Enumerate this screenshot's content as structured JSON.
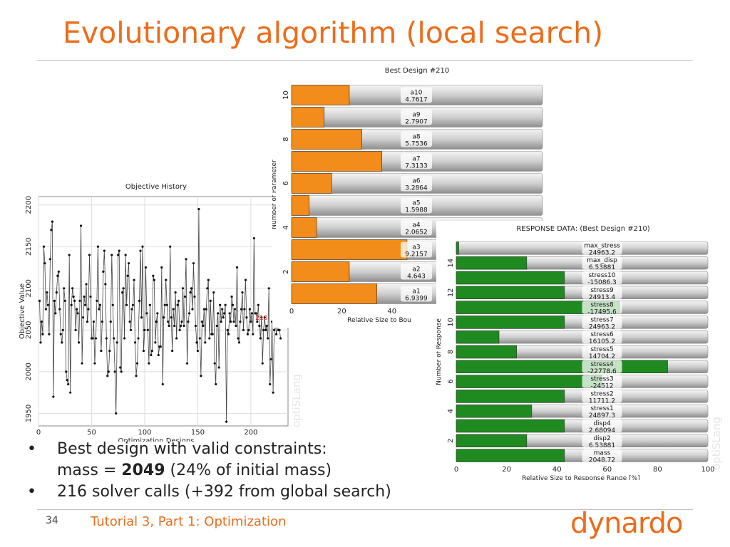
{
  "slide": {
    "title": "Evolutionary algorithm (local search)",
    "bullets": [
      {
        "line1": "Best design with valid constraints:",
        "line2_pre": "mass = ",
        "line2_bold": "2049",
        "line2_post": " (24% of initial mass)"
      },
      {
        "line1": "216 solver calls (+392 from global search)"
      }
    ],
    "page_number": "34",
    "footer": "Tutorial 3, Part 1: Optimization",
    "logo_text": "dynardo",
    "watermark": "optiSLang",
    "colors": {
      "accent": "#ec6c1a",
      "orange_bar": "#f28c1a",
      "green_bar": "#1f8a1f"
    }
  },
  "chart_data": [
    {
      "type": "line",
      "title": "Objective History",
      "xlabel": "Optimization Designs",
      "ylabel": "Objective Value",
      "xlim": [
        0,
        235
      ],
      "ylim": [
        1935,
        2210
      ],
      "xticks": [
        0,
        50,
        100,
        150,
        200
      ],
      "yticks": [
        1950,
        2000,
        2050,
        2100,
        2150,
        2200
      ],
      "highlight": {
        "label": "210",
        "x": 210,
        "y": 2065
      },
      "series": [
        {
          "values": [
            2085,
            2035,
            2060,
            2045,
            2150,
            2130,
            2075,
            2095,
            2080,
            2045,
            2135,
            2170,
            2180,
            1970,
            2085,
            2070,
            2095,
            2115,
            2120,
            2075,
            2045,
            2035,
            2050,
            2100,
            2085,
            2000,
            1990,
            1985,
            2140,
            1975,
            2080,
            2100,
            2090,
            2085,
            2050,
            2075,
            2070,
            2035,
            2085,
            2175,
            2010,
            2065,
            2090,
            2080,
            2105,
            2060,
            2075,
            2140,
            2090,
            2040,
            2040,
            2060,
            2010,
            2040,
            2085,
            2150,
            2075,
            2080,
            2025,
            2060,
            2120,
            2145,
            2105,
            2040,
            1995,
            2000,
            2025,
            2060,
            2140,
            2080,
            2040,
            2000,
            1950,
            2035,
            2140,
            2145,
            2005,
            2000,
            2095,
            2100,
            2040,
            2140,
            2080,
            2115,
            2130,
            2060,
            2050,
            2075,
            2080,
            2110,
            2035,
            1995,
            2010,
            2040,
            2085,
            2145,
            2065,
            2150,
            2025,
            2050,
            2125,
            2070,
            2050,
            2010,
            2080,
            2020,
            2025,
            2115,
            2110,
            2035,
            2060,
            2070,
            2020,
            2030,
            2030,
            2125,
            1985,
            2065,
            2080,
            2110,
            2080,
            2060,
            2055,
            2150,
            2065,
            2025,
            2075,
            2055,
            2095,
            2040,
            2080,
            2085,
            2050,
            2055,
            2060,
            2100,
            2055,
            2090,
            2135,
            2010,
            2060,
            2070,
            2095,
            2100,
            2075,
            2130,
            2090,
            2055,
            2035,
            2025,
            2195,
            2040,
            1995,
            2060,
            2055,
            2075,
            2035,
            2075,
            2100,
            2110,
            2040,
            2085,
            2045,
            2045,
            2095,
            2010,
            1985,
            2055,
            2070,
            2005,
            2080,
            2060,
            2075,
            2065,
            2070,
            2080,
            1940,
            2050,
            2045,
            2070,
            2060,
            2090,
            2080,
            2060,
            2075,
            2055,
            2125,
            2040,
            2035,
            2060,
            2075,
            2095,
            2050,
            2075,
            2110,
            2065,
            2045,
            2050,
            2075,
            2060,
            2070,
            2045,
            2160,
            2070,
            2070,
            2060,
            2080,
            2055,
            2040,
            2065,
            2010,
            2050,
            2065,
            2050,
            2055,
            2040,
            2100,
            1985,
            2015,
            2060,
            1975,
            2050,
            2060,
            2045,
            2055,
            2050,
            2050,
            2040
          ]
        }
      ]
    },
    {
      "type": "bar",
      "orientation": "horizontal",
      "title": "Best Design #210",
      "xlabel": "Relative Size to Bou",
      "ylabel": "Number of Parameter",
      "xlim": [
        0,
        100
      ],
      "xticks": [
        0,
        20,
        40
      ],
      "yticks": [
        2,
        4,
        6,
        8,
        10
      ],
      "categories": [
        "a1",
        "a2",
        "a3",
        "a4",
        "a5",
        "a6",
        "a7",
        "a8",
        "a9",
        "a10"
      ],
      "value_labels": [
        "6.9399",
        "4.643",
        "9.2157",
        "2.0652",
        "1.5988",
        "3.2864",
        "7.3133",
        "5.7536",
        "2.7907",
        "4.7617"
      ],
      "values": [
        34,
        23,
        46,
        10,
        7,
        16,
        36,
        28,
        13,
        23
      ]
    },
    {
      "type": "bar",
      "orientation": "horizontal",
      "title": "RESPONSE DATA: (Best Design #210)",
      "xlabel": "Relative Size to Response Range [%]",
      "ylabel": "Number of Response",
      "xlim": [
        0,
        100
      ],
      "xticks": [
        0,
        20,
        40,
        60,
        80,
        100
      ],
      "yticks": [
        2,
        4,
        6,
        8,
        10,
        12,
        14
      ],
      "categories": [
        "mass",
        "disp2",
        "disp4",
        "stress1",
        "stress2",
        "stress3",
        "stress4",
        "stress5",
        "stress6",
        "stress7",
        "stress8",
        "stress9",
        "stress10",
        "max_disp",
        "max_stress"
      ],
      "value_labels": [
        "2048.72",
        "6.53881",
        "2.68094",
        "24897.3",
        "11711.2",
        "-24512",
        "-22778.6",
        "14704.2",
        "16105.2",
        "24963.2",
        "-17495.6",
        "24913.4",
        "-15086.3",
        "6.53881",
        "24963.2"
      ],
      "values": [
        43,
        28,
        43,
        30,
        43,
        58,
        84,
        24,
        17,
        43,
        65,
        43,
        43,
        28,
        1
      ]
    }
  ]
}
